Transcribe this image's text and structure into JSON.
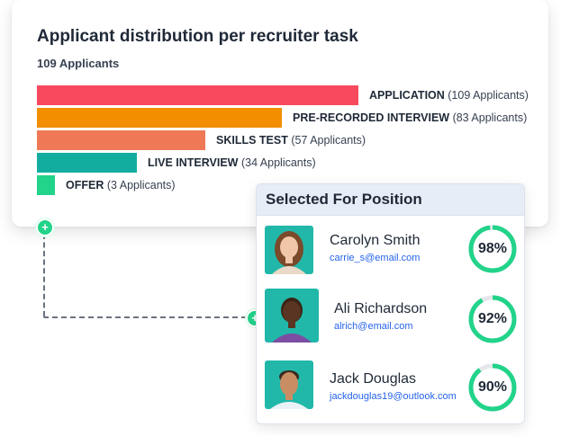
{
  "distribution": {
    "title": "Applicant distribution per recruiter task",
    "subtitle": "109 Applicants"
  },
  "chart_data": {
    "type": "bar",
    "title": "Applicant distribution per recruiter task",
    "categories": [
      "APPLICATION",
      "PRE-RECORDED INTERVIEW",
      "SKILLS TEST",
      "LIVE INTERVIEW",
      "OFFER"
    ],
    "values": [
      109,
      83,
      57,
      34,
      3
    ],
    "count_labels": [
      "(109 Applicants)",
      "(83 Applicants)",
      "(57 Applicants)",
      "(34 Applicants)",
      "(3 Applicants)"
    ],
    "colors": [
      "#f84a5e",
      "#f28e00",
      "#ef7956",
      "#13ada0",
      "#22d38a"
    ]
  },
  "selected": {
    "title": "Selected For Position",
    "people": [
      {
        "name": "Carolyn Smith",
        "email": "carrie_s@email.com",
        "score": "98%",
        "score_value": 98
      },
      {
        "name": "Ali Richardson",
        "email": "alrich@email.com",
        "score": "92%",
        "score_value": 92
      },
      {
        "name": "Jack Douglas",
        "email": "jackdouglas19@outlook.com",
        "score": "90%",
        "score_value": 90
      }
    ]
  },
  "icons": {
    "connector_top": "plus-icon",
    "connector_bottom": "plus-icon"
  },
  "colors": {
    "ring": "#22d38a",
    "ring_track": "#e5e7eb",
    "email": "#2563eb",
    "header_bg": "#e7edf6"
  }
}
